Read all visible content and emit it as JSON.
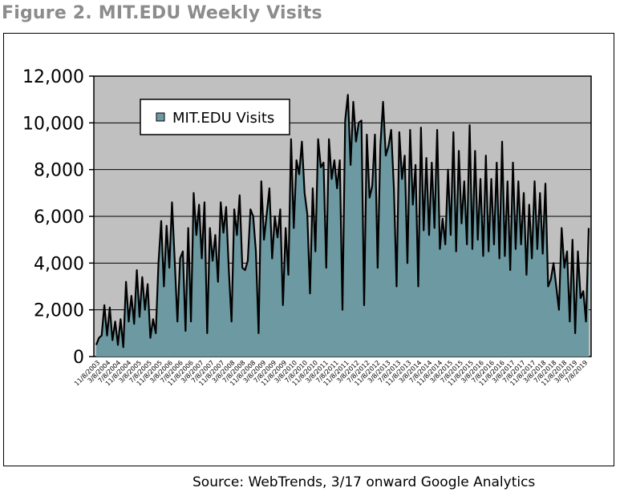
{
  "title": "Figure 2. MIT.EDU Weekly Visits",
  "source": "Source: WebTrends, 3/17 onward Google Analytics",
  "chart_data": {
    "type": "area",
    "title": "Figure 2. MIT.EDU Weekly Visits",
    "xlabel": "",
    "ylabel": "",
    "ylim": [
      0,
      12000
    ],
    "yticks": [
      0,
      2000,
      4000,
      6000,
      8000,
      10000,
      12000
    ],
    "ytick_labels": [
      "0",
      "2,000",
      "4,000",
      "6,000",
      "8,000",
      "10,000",
      "12,000"
    ],
    "grid": true,
    "legend": "top-left",
    "colors": {
      "fill": "#6d9aa2",
      "line": "#000000",
      "plot_bg": "#c0c0c0"
    },
    "xtick_labels": [
      "11/8/2003",
      "3/8/2004",
      "7/8/2004",
      "11/8/2004",
      "3/8/2005",
      "7/8/2005",
      "11/8/2005",
      "3/8/2006",
      "7/8/2006",
      "11/8/2006",
      "3/8/2007",
      "7/8/2007",
      "11/8/2007",
      "3/8/2008",
      "7/8/2008",
      "11/8/2008",
      "3/8/2009",
      "7/8/2009",
      "11/8/2009",
      "3/8/2010",
      "7/8/2010",
      "11/8/2010",
      "3/8/2011",
      "7/8/2011",
      "11/8/2011",
      "3/8/2012",
      "7/8/2012",
      "11/8/2012",
      "3/8/2013",
      "7/8/2013",
      "11/8/2013",
      "3/8/2014",
      "7/8/2014",
      "11/8/2014",
      "3/8/2015",
      "7/8/2015",
      "11/8/2015",
      "3/8/2016",
      "7/8/2016",
      "11/8/2016",
      "3/8/2017",
      "7/8/2017",
      "11/8/2017",
      "3/8/2018",
      "7/8/2018",
      "11/8/2018",
      "3/8/2019",
      "7/8/2019"
    ],
    "series": [
      {
        "name": "MIT.EDU Visits",
        "values": [
          500,
          800,
          900,
          2200,
          900,
          2100,
          700,
          1500,
          500,
          1600,
          400,
          3200,
          1500,
          2600,
          1400,
          3700,
          1700,
          3400,
          2000,
          3100,
          800,
          1600,
          1000,
          4000,
          5800,
          3000,
          5600,
          3800,
          6600,
          4100,
          1500,
          4200,
          4500,
          1100,
          5500,
          1500,
          7000,
          5200,
          6500,
          4200,
          6600,
          1000,
          5500,
          4100,
          5200,
          3200,
          6600,
          5300,
          6400,
          3700,
          1500,
          6300,
          5200,
          6900,
          3800,
          3700,
          4100,
          6300,
          6000,
          4500,
          1000,
          7500,
          5000,
          6100,
          7200,
          4200,
          6000,
          5100,
          6300,
          2200,
          5500,
          3500,
          9300,
          5500,
          8400,
          7800,
          9200,
          7000,
          6100,
          2700,
          7200,
          4500,
          9300,
          8100,
          8300,
          3800,
          9300,
          7600,
          8400,
          7200,
          8400,
          2000,
          10100,
          11200,
          8200,
          10900,
          9200,
          10000,
          10100,
          2200,
          9500,
          6800,
          7300,
          9500,
          3800,
          9000,
          10900,
          8600,
          9000,
          9700,
          7200,
          3000,
          9600,
          7600,
          8600,
          4000,
          9700,
          6500,
          8200,
          3000,
          9800,
          5400,
          8500,
          5200,
          8300,
          5500,
          9700,
          4600,
          5900,
          4800,
          8000,
          5200,
          9600,
          4500,
          8800,
          5700,
          7500,
          4800,
          9900,
          4600,
          8800,
          5000,
          7600,
          4300,
          8600,
          4500,
          7600,
          4800,
          8300,
          4200,
          9200,
          4300,
          7500,
          3700,
          8300,
          4600,
          7500,
          4800,
          7000,
          3500,
          6500,
          4200,
          7500,
          4600,
          7000,
          4400,
          7400,
          3000,
          3300,
          4000,
          3000,
          2000,
          5500,
          3800,
          4500,
          1500,
          5000,
          1000,
          4500,
          2500,
          2800,
          1500,
          5500
        ]
      }
    ]
  }
}
